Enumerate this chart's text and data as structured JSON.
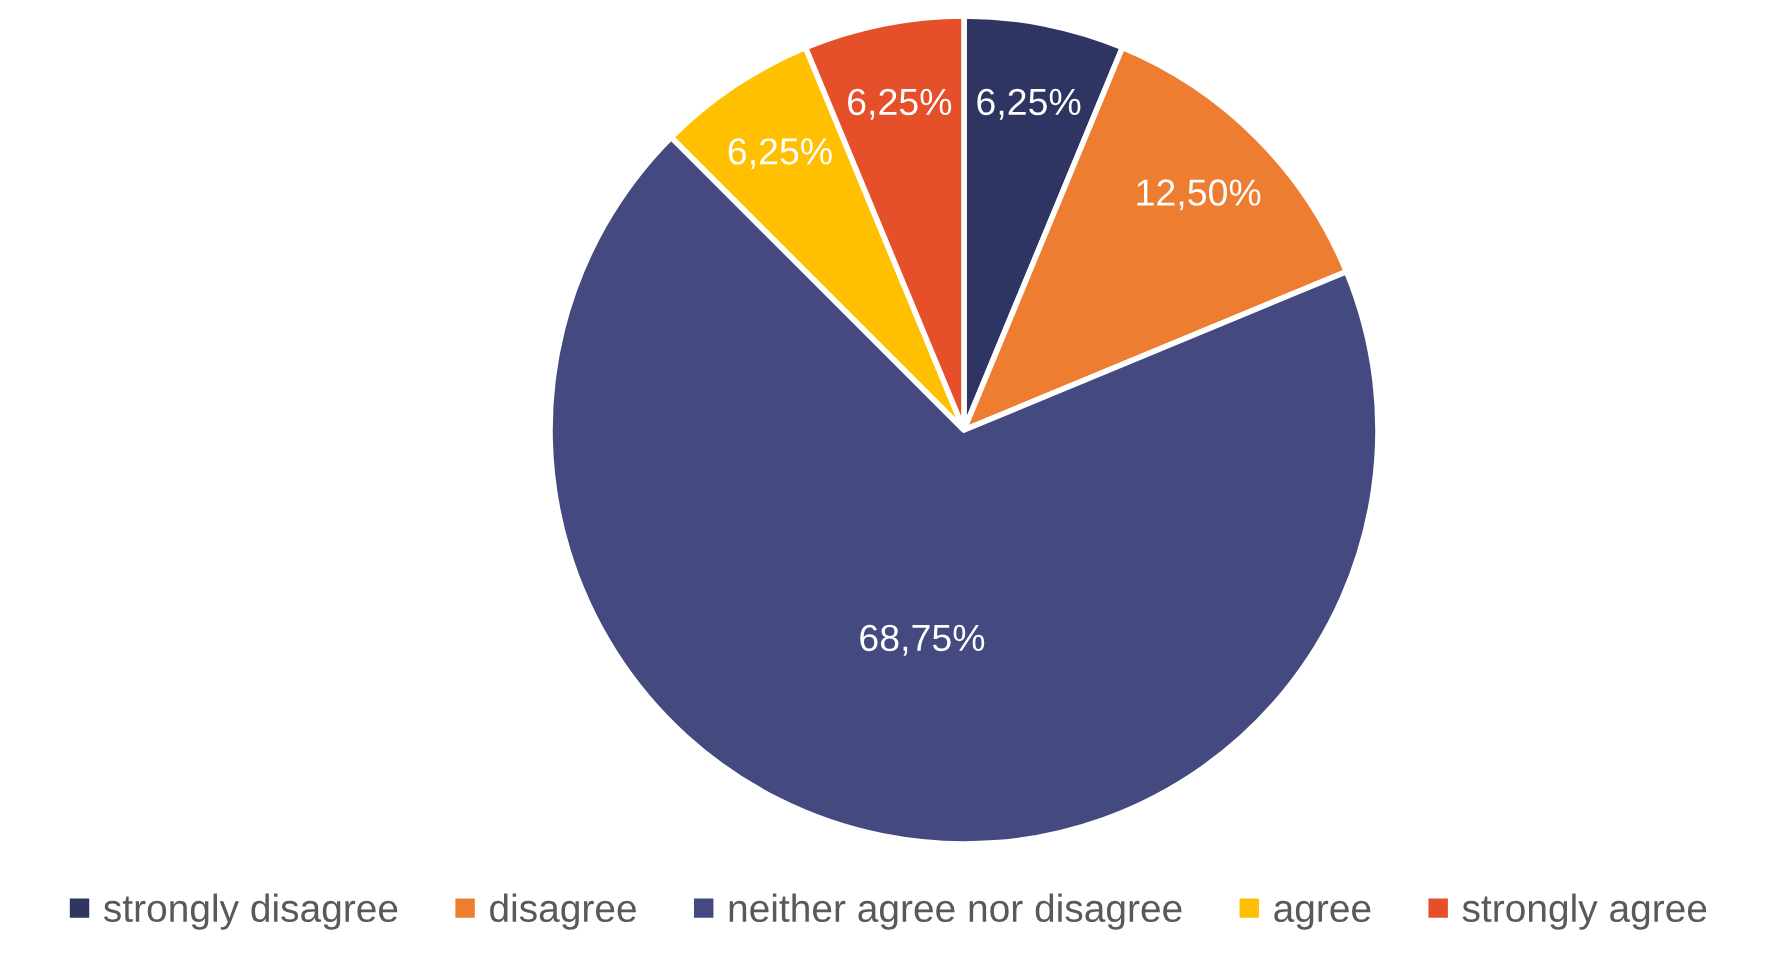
{
  "chart_data": {
    "type": "pie",
    "categories": [
      "strongly disagree",
      "disagree",
      "neither agree nor disagree",
      "agree",
      "strongly agree"
    ],
    "values": [
      6.25,
      12.5,
      68.75,
      6.25,
      6.25
    ],
    "colors": [
      "#2e3562",
      "#ed7d31",
      "#44497f",
      "#ffc000",
      "#e5502a"
    ],
    "value_labels": [
      "6,25%",
      "12,50%",
      "68,75%",
      "6,25%",
      "6,25%"
    ],
    "legend": "bottom"
  }
}
